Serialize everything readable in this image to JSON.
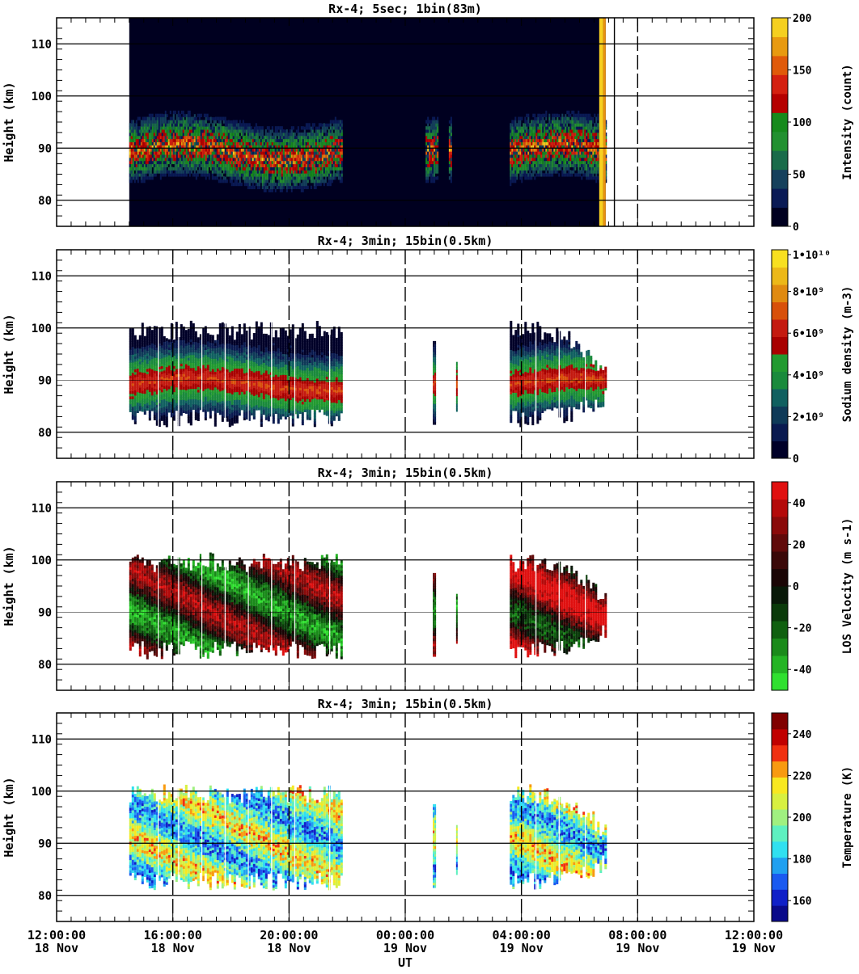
{
  "x_axis": {
    "label": "UT",
    "tick_labels": [
      {
        "time": "12:00:00",
        "date": "18 Nov",
        "hour": 0
      },
      {
        "time": "16:00:00",
        "date": "18 Nov",
        "hour": 4
      },
      {
        "time": "20:00:00",
        "date": "18 Nov",
        "hour": 8
      },
      {
        "time": "00:00:00",
        "date": "19 Nov",
        "hour": 12
      },
      {
        "time": "04:00:00",
        "date": "19 Nov",
        "hour": 16
      },
      {
        "time": "08:00:00",
        "date": "19 Nov",
        "hour": 20
      },
      {
        "time": "12:00:00",
        "date": "19 Nov",
        "hour": 24
      }
    ]
  },
  "chart_data": [
    {
      "type": "heatmap",
      "title": "Rx-4;  5sec; 1bin(83m)",
      "ylabel": "Height (km)",
      "ylim": [
        75,
        115
      ],
      "yticks": [
        80,
        90,
        100,
        110
      ],
      "colorbar_label": "Intensity (count)",
      "colorbar_ticks": [
        "0",
        "50",
        "100",
        "150",
        "200"
      ],
      "colorbar_range": [
        0,
        200
      ],
      "colorbar_colors": [
        "#000020",
        "#0a1a55",
        "#15405c",
        "#1a6b4a",
        "#229030",
        "#168a1c",
        "#b50000",
        "#d42010",
        "#e05a0a",
        "#e89a10",
        "#f5d020"
      ],
      "data_windows": [
        {
          "start_hour": 2.5,
          "end_hour": 18.9
        }
      ],
      "signal_windows": [
        {
          "start_hour": 2.5,
          "end_hour": 9.8
        },
        {
          "start_hour": 12.7,
          "end_hour": 13.1
        },
        {
          "start_hour": 13.5,
          "end_hour": 13.6
        },
        {
          "start_hour": 15.6,
          "end_hour": 18.9
        }
      ],
      "layer_km": [
        83,
        97
      ],
      "peak_km": 89
    },
    {
      "type": "heatmap",
      "title": "Rx-4; 3min; 15bin(0.5km)",
      "ylabel": "Height (km)",
      "ylim": [
        75,
        115
      ],
      "yticks": [
        80,
        90,
        100,
        110
      ],
      "colorbar_label": "Sodium density (m-3)",
      "colorbar_ticks": [
        "0",
        "2•10⁹",
        "4•10⁹",
        "6•10⁹",
        "8•10⁹",
        "1•10¹⁰"
      ],
      "colorbar_range": [
        0,
        10000000000
      ],
      "colorbar_colors": [
        "#000028",
        "#0a1a50",
        "#0f3a58",
        "#106060",
        "#1a8a3c",
        "#229a30",
        "#a80000",
        "#c41a10",
        "#d8500a",
        "#e08a10",
        "#ecb818",
        "#f8e020"
      ],
      "data_windows": [
        {
          "start_hour": 2.5,
          "end_hour": 9.8
        },
        {
          "start_hour": 12.95,
          "end_hour": 13.02
        },
        {
          "start_hour": 13.75,
          "end_hour": 13.8
        },
        {
          "start_hour": 15.6,
          "end_hour": 18.9
        }
      ],
      "layer_km": [
        81,
        101
      ],
      "peak_km": 89
    },
    {
      "type": "heatmap",
      "title": "Rx-4; 3min; 15bin(0.5km)",
      "ylabel": "Height (km)",
      "ylim": [
        75,
        115
      ],
      "yticks": [
        80,
        90,
        100,
        110
      ],
      "colorbar_label": "LOS Velocity (m s-1)",
      "colorbar_ticks": [
        "-40",
        "-20",
        "0",
        "20",
        "40"
      ],
      "colorbar_range": [
        -50,
        50
      ],
      "colorbar_colors": [
        "#30e030",
        "#24b424",
        "#1a8a1a",
        "#106010",
        "#0a3a0a",
        "#081808",
        "#1a0505",
        "#3a0808",
        "#600a0a",
        "#8a0a0a",
        "#b40a0a",
        "#e01010"
      ],
      "data_windows": [
        {
          "start_hour": 2.5,
          "end_hour": 9.8
        },
        {
          "start_hour": 12.95,
          "end_hour": 13.02
        },
        {
          "start_hour": 13.75,
          "end_hour": 13.8
        },
        {
          "start_hour": 15.6,
          "end_hour": 18.9
        }
      ],
      "layer_km": [
        81,
        101
      ],
      "peak_km": 90
    },
    {
      "type": "heatmap",
      "title": "Rx-4; 3min; 15bin(0.5km)",
      "ylabel": "Height (km)",
      "ylim": [
        75,
        115
      ],
      "yticks": [
        80,
        90,
        100,
        110
      ],
      "colorbar_label": "Temperature (K)",
      "colorbar_ticks": [
        "160",
        "180",
        "200",
        "220",
        "240"
      ],
      "colorbar_range": [
        150,
        250
      ],
      "colorbar_colors": [
        "#0a0a8a",
        "#1020c8",
        "#1a5af0",
        "#20a0f0",
        "#30e0f0",
        "#5ef0c0",
        "#a0f080",
        "#d8f040",
        "#f8e820",
        "#f89a10",
        "#f03010",
        "#c00000",
        "#800000"
      ],
      "data_windows": [
        {
          "start_hour": 2.5,
          "end_hour": 9.8
        },
        {
          "start_hour": 12.95,
          "end_hour": 13.02
        },
        {
          "start_hour": 13.75,
          "end_hour": 13.8
        },
        {
          "start_hour": 15.6,
          "end_hour": 18.9
        }
      ],
      "layer_km": [
        81,
        101
      ],
      "peak_km": 90
    }
  ]
}
